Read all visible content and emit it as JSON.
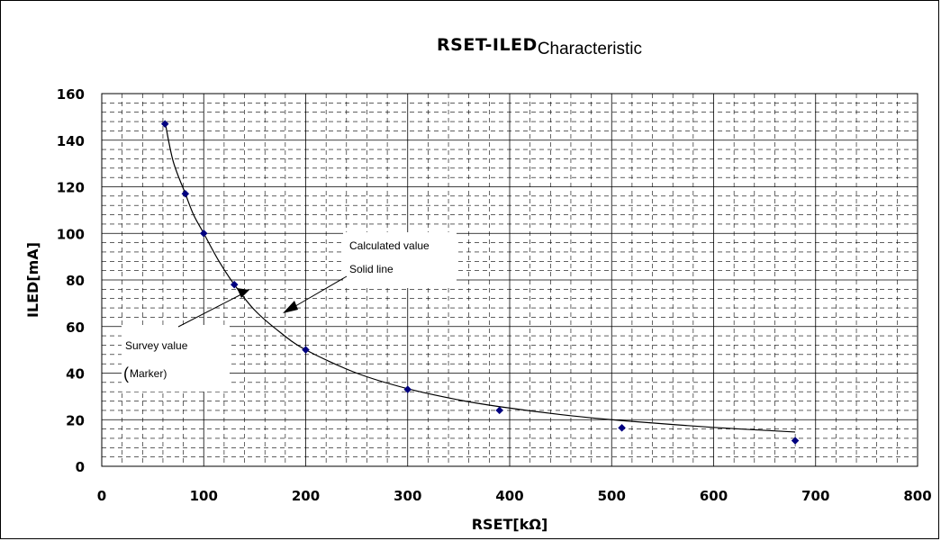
{
  "chart_data": {
    "type": "line",
    "title": "RSET-ILED",
    "title_suffix": "Characteristic",
    "xlabel": "RSET[kΩ]",
    "ylabel": "ILED[mA]",
    "xlim": [
      0,
      800
    ],
    "ylim": [
      0,
      160
    ],
    "x_ticks": [
      "0",
      "100",
      "200",
      "300",
      "400",
      "500",
      "600",
      "700",
      "800"
    ],
    "y_ticks": [
      "0",
      "20",
      "40",
      "60",
      "80",
      "100",
      "120",
      "140",
      "160"
    ],
    "grid": true,
    "series": [
      {
        "name": "Survey value",
        "style": "marker",
        "marker_color": "#000080",
        "x": [
          62,
          82,
          100,
          130,
          200,
          300,
          390,
          510,
          680
        ],
        "y": [
          147,
          117,
          100,
          78,
          50,
          33,
          24,
          16.5,
          11
        ]
      },
      {
        "name": "Calculated value",
        "style": "solid line",
        "line_color": "#000000",
        "x": [
          62,
          70,
          82,
          90,
          100,
          115,
          130,
          150,
          175,
          200,
          250,
          300,
          350,
          390,
          450,
          510,
          600,
          680
        ],
        "y": [
          148,
          131,
          117,
          108,
          100,
          88,
          78,
          67,
          57.5,
          50,
          40,
          33.3,
          28.5,
          25.6,
          22.2,
          19.6,
          16.7,
          14.7
        ]
      }
    ],
    "annotations": [
      {
        "line1": "Calculated value",
        "line2": "Solid line"
      },
      {
        "line1": "Survey value",
        "paren": "(",
        "line2": "Marker)"
      }
    ]
  }
}
